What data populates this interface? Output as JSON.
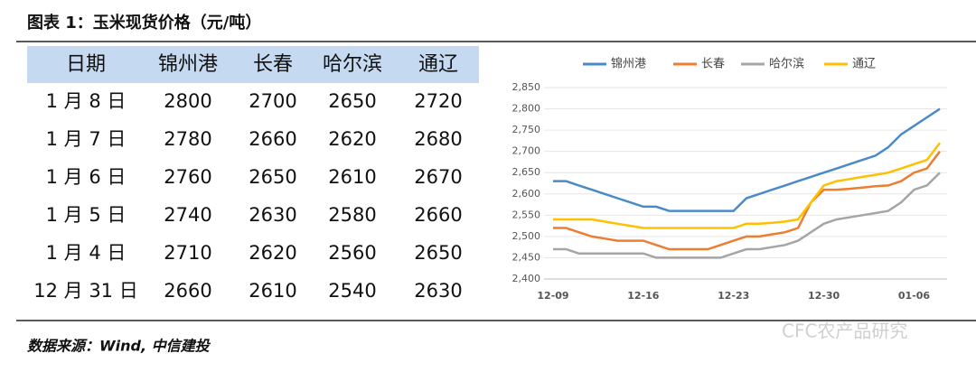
{
  "header": {
    "title": "图表 1：玉米现货价格（元/吨）"
  },
  "table": {
    "header": [
      "日期",
      "锦州港",
      "长春",
      "哈尔滨",
      "通辽"
    ],
    "rows": [
      [
        "1 月 8 日",
        2800,
        2700,
        2650,
        2720
      ],
      [
        "1 月 7 日",
        2780,
        2660,
        2620,
        2680
      ],
      [
        "1 月 6 日",
        2760,
        2650,
        2610,
        2670
      ],
      [
        "1 月 5 日",
        2740,
        2630,
        2580,
        2660
      ],
      [
        "1 月 4 日",
        2710,
        2620,
        2560,
        2650
      ],
      [
        "12 月 31 日",
        2660,
        2610,
        2540,
        2630
      ]
    ]
  },
  "chart_data": {
    "type": "line",
    "categories": [
      "12-09",
      null,
      null,
      null,
      null,
      null,
      null,
      "12-16",
      null,
      null,
      null,
      null,
      null,
      null,
      "12-23",
      null,
      null,
      null,
      null,
      null,
      null,
      "12-30",
      null,
      null,
      null,
      null,
      null,
      null,
      "01-06",
      null,
      null
    ],
    "series": [
      {
        "name": "锦州港",
        "color": "#4a8ac9",
        "values": [
          2630,
          2630,
          2620,
          2610,
          2600,
          2590,
          2580,
          2570,
          2570,
          2560,
          2560,
          2560,
          2560,
          2560,
          2560,
          2590,
          2600,
          2610,
          2620,
          2630,
          2640,
          2650,
          2660,
          2670,
          2680,
          2690,
          2710,
          2740,
          2760,
          2780,
          2800
        ]
      },
      {
        "name": "长春",
        "color": "#ed7d31",
        "values": [
          2520,
          2520,
          2510,
          2500,
          2495,
          2490,
          2490,
          2490,
          2480,
          2470,
          2470,
          2470,
          2470,
          2480,
          2490,
          2500,
          2500,
          2505,
          2510,
          2520,
          2580,
          2610,
          2610,
          2612,
          2615,
          2618,
          2620,
          2630,
          2650,
          2660,
          2700
        ]
      },
      {
        "name": "哈尔滨",
        "color": "#a5a5a5",
        "values": [
          2470,
          2470,
          2460,
          2460,
          2460,
          2460,
          2460,
          2460,
          2450,
          2450,
          2450,
          2450,
          2450,
          2450,
          2460,
          2470,
          2470,
          2475,
          2480,
          2490,
          2510,
          2530,
          2540,
          2545,
          2550,
          2555,
          2560,
          2580,
          2610,
          2620,
          2650
        ]
      },
      {
        "name": "通辽",
        "color": "#ffc000",
        "values": [
          2540,
          2540,
          2540,
          2540,
          2535,
          2530,
          2525,
          2520,
          2520,
          2520,
          2520,
          2520,
          2520,
          2520,
          2520,
          2530,
          2530,
          2532,
          2535,
          2540,
          2580,
          2620,
          2630,
          2635,
          2640,
          2645,
          2650,
          2660,
          2670,
          2680,
          2720
        ]
      }
    ],
    "ylim": [
      2400,
      2850
    ],
    "yticks": [
      {
        "value": 2400,
        "label": "2,400"
      },
      {
        "value": 2450,
        "label": "2,450"
      },
      {
        "value": 2500,
        "label": "2,500"
      },
      {
        "value": 2550,
        "label": "2,550"
      },
      {
        "value": 2600,
        "label": "2,600"
      },
      {
        "value": 2650,
        "label": "2,650"
      },
      {
        "value": 2700,
        "label": "2,700"
      },
      {
        "value": 2750,
        "label": "2,750"
      },
      {
        "value": 2800,
        "label": "2,800"
      },
      {
        "value": 2850,
        "label": "2,850"
      }
    ],
    "legend": "top"
  },
  "watermark": "CFC农产品研究",
  "source": "数据来源：Wind, 中信建投"
}
